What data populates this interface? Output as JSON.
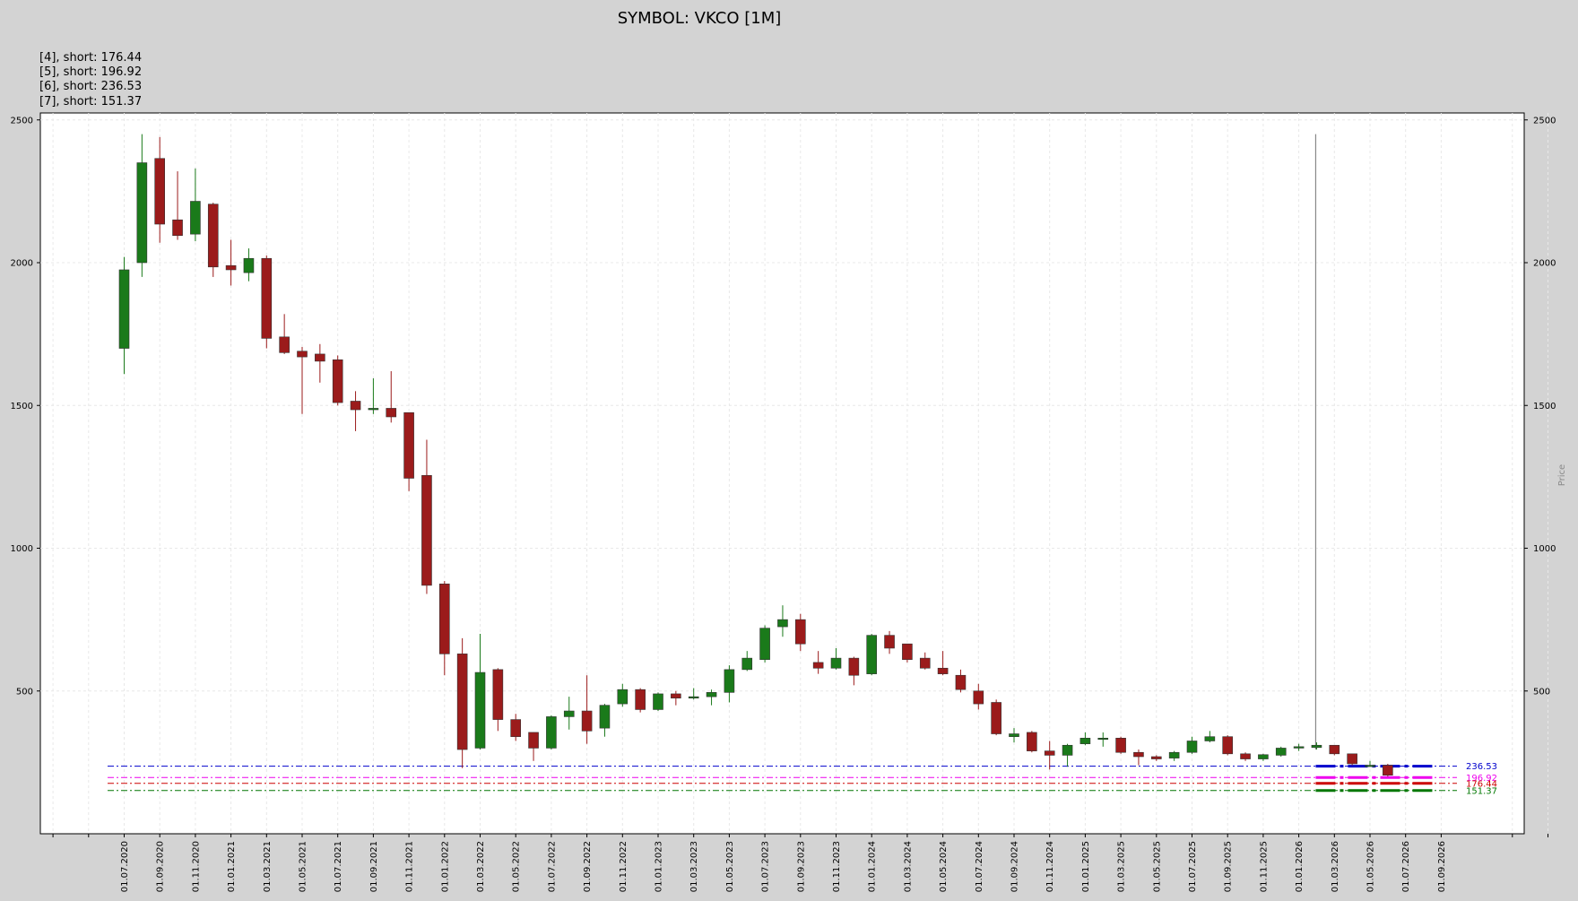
{
  "chart_data": {
    "type": "candlestick",
    "title": "SYMBOL: VKCO [1M]",
    "legend": [
      "[4], short: 176.44",
      "[5], short: 196.92",
      "[6], short: 236.53",
      "[7], short: 151.37"
    ],
    "ylabel": "Price",
    "ylim": [
      0,
      2560
    ],
    "yticks": [
      500,
      1000,
      1500,
      2000,
      2500
    ],
    "grid": true,
    "xticks": [
      "01.07.2020",
      "01.09.2020",
      "01.11.2020",
      "01.01.2021",
      "01.03.2021",
      "01.05.2021",
      "01.07.2021",
      "01.09.2021",
      "01.11.2021",
      "01.01.2022",
      "01.03.2022",
      "01.05.2022",
      "01.07.2022",
      "01.09.2022",
      "01.11.2022",
      "01.01.2023",
      "01.03.2023",
      "01.05.2023",
      "01.07.2023",
      "01.09.2023",
      "01.11.2023",
      "01.01.2024",
      "01.03.2024",
      "01.05.2024",
      "01.07.2024",
      "01.09.2024",
      "01.11.2024",
      "01.01.2025",
      "01.03.2025",
      "01.05.2025",
      "01.07.2025",
      "01.09.2025",
      "01.11.2025",
      "01.01.2026",
      "01.03.2026",
      "01.05.2026",
      "01.07.2026",
      "01.09.2026"
    ],
    "candles": [
      {
        "date": "01.07.2020",
        "o": 1700,
        "h": 2020,
        "l": 1610,
        "c": 1975
      },
      {
        "date": "01.08.2020",
        "o": 2000,
        "h": 2450,
        "l": 1950,
        "c": 2350
      },
      {
        "date": "01.09.2020",
        "o": 2365,
        "h": 2440,
        "l": 2070,
        "c": 2135
      },
      {
        "date": "01.10.2020",
        "o": 2150,
        "h": 2320,
        "l": 2080,
        "c": 2095
      },
      {
        "date": "01.11.2020",
        "o": 2100,
        "h": 2330,
        "l": 2075,
        "c": 2215
      },
      {
        "date": "01.12.2020",
        "o": 2205,
        "h": 2210,
        "l": 1950,
        "c": 1985
      },
      {
        "date": "01.01.2021",
        "o": 1990,
        "h": 2080,
        "l": 1920,
        "c": 1975
      },
      {
        "date": "01.02.2021",
        "o": 1965,
        "h": 2050,
        "l": 1935,
        "c": 2015
      },
      {
        "date": "01.03.2021",
        "o": 2015,
        "h": 2025,
        "l": 1700,
        "c": 1735
      },
      {
        "date": "01.04.2021",
        "o": 1740,
        "h": 1820,
        "l": 1680,
        "c": 1685
      },
      {
        "date": "01.05.2021",
        "o": 1690,
        "h": 1705,
        "l": 1470,
        "c": 1670
      },
      {
        "date": "01.06.2021",
        "o": 1680,
        "h": 1715,
        "l": 1580,
        "c": 1655
      },
      {
        "date": "01.07.2021",
        "o": 1660,
        "h": 1675,
        "l": 1500,
        "c": 1510
      },
      {
        "date": "01.08.2021",
        "o": 1515,
        "h": 1550,
        "l": 1410,
        "c": 1485
      },
      {
        "date": "01.09.2021",
        "o": 1485,
        "h": 1595,
        "l": 1470,
        "c": 1490
      },
      {
        "date": "01.10.2021",
        "o": 1490,
        "h": 1620,
        "l": 1440,
        "c": 1460
      },
      {
        "date": "01.11.2021",
        "o": 1475,
        "h": 1475,
        "l": 1200,
        "c": 1245
      },
      {
        "date": "01.12.2021",
        "o": 1255,
        "h": 1380,
        "l": 840,
        "c": 870
      },
      {
        "date": "01.01.2022",
        "o": 875,
        "h": 885,
        "l": 555,
        "c": 630
      },
      {
        "date": "01.02.2022",
        "o": 630,
        "h": 685,
        "l": 230,
        "c": 295
      },
      {
        "date": "01.03.2022",
        "o": 300,
        "h": 700,
        "l": 295,
        "c": 565
      },
      {
        "date": "01.04.2022",
        "o": 575,
        "h": 580,
        "l": 360,
        "c": 400
      },
      {
        "date": "01.05.2022",
        "o": 400,
        "h": 420,
        "l": 325,
        "c": 340
      },
      {
        "date": "01.06.2022",
        "o": 355,
        "h": 355,
        "l": 255,
        "c": 300
      },
      {
        "date": "01.07.2022",
        "o": 300,
        "h": 415,
        "l": 295,
        "c": 410
      },
      {
        "date": "01.08.2022",
        "o": 410,
        "h": 480,
        "l": 365,
        "c": 430
      },
      {
        "date": "01.09.2022",
        "o": 430,
        "h": 555,
        "l": 315,
        "c": 360
      },
      {
        "date": "01.10.2022",
        "o": 370,
        "h": 455,
        "l": 340,
        "c": 450
      },
      {
        "date": "01.11.2022",
        "o": 455,
        "h": 525,
        "l": 445,
        "c": 505
      },
      {
        "date": "01.12.2022",
        "o": 505,
        "h": 510,
        "l": 425,
        "c": 435
      },
      {
        "date": "01.01.2023",
        "o": 435,
        "h": 495,
        "l": 430,
        "c": 490
      },
      {
        "date": "01.02.2023",
        "o": 490,
        "h": 500,
        "l": 450,
        "c": 475
      },
      {
        "date": "01.03.2023",
        "o": 475,
        "h": 510,
        "l": 470,
        "c": 480
      },
      {
        "date": "01.04.2023",
        "o": 480,
        "h": 505,
        "l": 450,
        "c": 495
      },
      {
        "date": "01.05.2023",
        "o": 495,
        "h": 590,
        "l": 460,
        "c": 575
      },
      {
        "date": "01.06.2023",
        "o": 575,
        "h": 640,
        "l": 570,
        "c": 615
      },
      {
        "date": "01.07.2023",
        "o": 610,
        "h": 730,
        "l": 600,
        "c": 720
      },
      {
        "date": "01.08.2023",
        "o": 725,
        "h": 800,
        "l": 690,
        "c": 750
      },
      {
        "date": "01.09.2023",
        "o": 750,
        "h": 770,
        "l": 640,
        "c": 665
      },
      {
        "date": "01.10.2023",
        "o": 600,
        "h": 640,
        "l": 560,
        "c": 580
      },
      {
        "date": "01.11.2023",
        "o": 580,
        "h": 650,
        "l": 575,
        "c": 615
      },
      {
        "date": "01.12.2023",
        "o": 615,
        "h": 620,
        "l": 520,
        "c": 555
      },
      {
        "date": "01.01.2024",
        "o": 560,
        "h": 700,
        "l": 555,
        "c": 695
      },
      {
        "date": "01.02.2024",
        "o": 695,
        "h": 710,
        "l": 630,
        "c": 650
      },
      {
        "date": "01.03.2024",
        "o": 665,
        "h": 665,
        "l": 600,
        "c": 610
      },
      {
        "date": "01.04.2024",
        "o": 615,
        "h": 635,
        "l": 575,
        "c": 580
      },
      {
        "date": "01.05.2024",
        "o": 580,
        "h": 640,
        "l": 555,
        "c": 560
      },
      {
        "date": "01.06.2024",
        "o": 555,
        "h": 575,
        "l": 495,
        "c": 505
      },
      {
        "date": "01.07.2024",
        "o": 500,
        "h": 525,
        "l": 435,
        "c": 455
      },
      {
        "date": "01.08.2024",
        "o": 460,
        "h": 470,
        "l": 345,
        "c": 350
      },
      {
        "date": "01.09.2024",
        "o": 340,
        "h": 370,
        "l": 320,
        "c": 350
      },
      {
        "date": "01.10.2024",
        "o": 355,
        "h": 360,
        "l": 285,
        "c": 290
      },
      {
        "date": "01.11.2024",
        "o": 290,
        "h": 325,
        "l": 225,
        "c": 275
      },
      {
        "date": "01.12.2024",
        "o": 275,
        "h": 315,
        "l": 235,
        "c": 310
      },
      {
        "date": "01.01.2025",
        "o": 315,
        "h": 355,
        "l": 310,
        "c": 335
      },
      {
        "date": "01.02.2025",
        "o": 335,
        "h": 355,
        "l": 305,
        "c": 335
      },
      {
        "date": "01.03.2025",
        "o": 335,
        "h": 340,
        "l": 280,
        "c": 285
      },
      {
        "date": "01.04.2025",
        "o": 285,
        "h": 295,
        "l": 240,
        "c": 270
      },
      {
        "date": "01.05.2025",
        "o": 270,
        "h": 275,
        "l": 255,
        "c": 262
      },
      {
        "date": "01.06.2025",
        "o": 265,
        "h": 290,
        "l": 255,
        "c": 285
      },
      {
        "date": "01.07.2025",
        "o": 285,
        "h": 340,
        "l": 280,
        "c": 325
      },
      {
        "date": "01.08.2025",
        "o": 325,
        "h": 360,
        "l": 320,
        "c": 340
      },
      {
        "date": "01.09.2025",
        "o": 340,
        "h": 345,
        "l": 275,
        "c": 280
      },
      {
        "date": "01.10.2025",
        "o": 280,
        "h": 285,
        "l": 255,
        "c": 262
      },
      {
        "date": "01.11.2025",
        "o": 262,
        "h": 280,
        "l": 255,
        "c": 277
      },
      {
        "date": "01.12.2025",
        "o": 275,
        "h": 305,
        "l": 270,
        "c": 300
      },
      {
        "date": "01.01.2026",
        "o": 300,
        "h": 315,
        "l": 290,
        "c": 305
      },
      {
        "date": "01.02.2026",
        "o": 302,
        "h": 320,
        "l": 295,
        "c": 310
      },
      {
        "date": "01.03.2026",
        "o": 310,
        "h": 310,
        "l": 275,
        "c": 280
      },
      {
        "date": "01.04.2026",
        "o": 280,
        "h": 280,
        "l": 240,
        "c": 245
      },
      {
        "date": "01.05.2026",
        "o": 240,
        "h": 255,
        "l": 235,
        "c": 240
      },
      {
        "date": "01.06.2026",
        "o": 240,
        "h": 245,
        "l": 200,
        "c": 205
      }
    ],
    "levels": [
      {
        "name": "[6]",
        "value": 236.53,
        "label": "236.53",
        "color": "#0000cc"
      },
      {
        "name": "[5]",
        "value": 196.92,
        "label": "196.92",
        "color": "#ee00ee"
      },
      {
        "name": "[4]",
        "value": 176.44,
        "label": "176.44",
        "color": "#cc0000"
      },
      {
        "name": "[7]",
        "value": 151.37,
        "label": "151.37",
        "color": "#007700"
      }
    ],
    "vline": {
      "date": "01.02.2026",
      "top": 2450
    },
    "up_color": "#1a7a1a",
    "down_color": "#9b1b1b",
    "grid_color": "#e8e8e8"
  }
}
